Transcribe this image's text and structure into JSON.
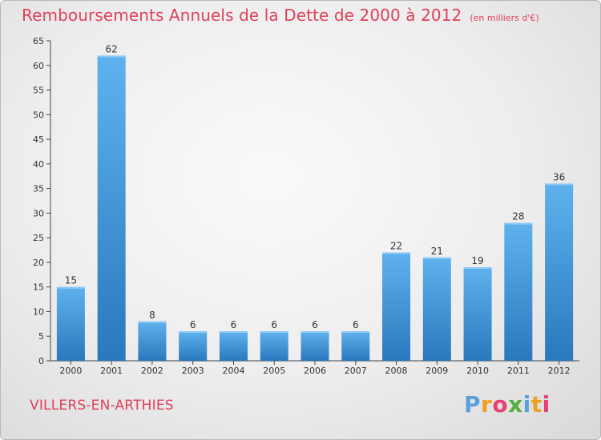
{
  "header": {
    "title": "Remboursements Annuels de la Dette de 2000 à 2012",
    "unit": "(en milliers d'€)"
  },
  "commune": "VILLERS-EN-ARTHIES",
  "logo": {
    "letters": [
      "P",
      "r",
      "o",
      "x",
      "i",
      "t",
      "i"
    ],
    "colors": [
      "#5aa0dc",
      "#f0a020",
      "#e84070",
      "#50b040",
      "#5aa0dc",
      "#f0a020",
      "#e84070"
    ]
  },
  "chart_data": {
    "type": "bar",
    "title": "Remboursements Annuels de la Dette de 2000 à 2012",
    "subtitle": "(en milliers d'€)",
    "xlabel": "",
    "ylabel": "",
    "categories": [
      "2000",
      "2001",
      "2002",
      "2003",
      "2004",
      "2005",
      "2006",
      "2007",
      "2008",
      "2009",
      "2010",
      "2011",
      "2012"
    ],
    "values": [
      15,
      62,
      8,
      6,
      6,
      6,
      6,
      6,
      22,
      21,
      19,
      28,
      36
    ],
    "ylim": [
      0,
      65
    ],
    "yticks": [
      0,
      5,
      10,
      15,
      20,
      25,
      30,
      35,
      40,
      45,
      50,
      55,
      60,
      65
    ],
    "grid": false,
    "bar_color": "#4a9fe0"
  }
}
